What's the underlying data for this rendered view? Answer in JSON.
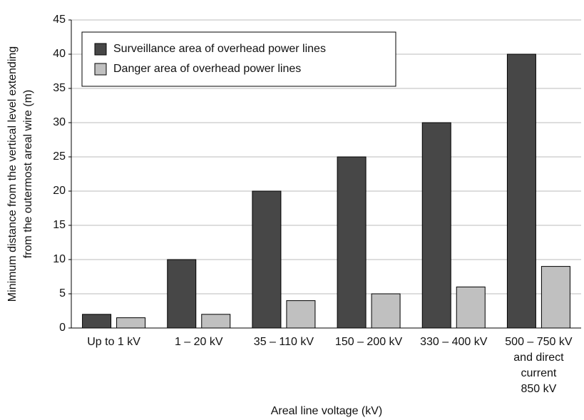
{
  "chart_data": {
    "type": "bar",
    "x_label": "Areal line voltage (kV)",
    "y_label": [
      "Minimum distance from the vertical level extending",
      "from the outermost areal wire (m)"
    ],
    "categories": [
      "Up to 1 kV",
      "1 – 20 kV",
      "35 – 110 kV",
      "150 – 200 kV",
      "330 – 400 kV",
      "500 – 750 kV\nand direct\ncurrent\n850 kV"
    ],
    "series": [
      {
        "name": "Surveillance area of overhead power lines",
        "color": "#474747",
        "values": [
          2,
          10,
          20,
          25,
          30,
          40
        ]
      },
      {
        "name": "Danger area of overhead power lines",
        "color": "#c0c0c0",
        "values": [
          1.5,
          2,
          4,
          5,
          6,
          9
        ]
      }
    ],
    "ylim": [
      0,
      45
    ],
    "yticks": [
      0,
      5,
      10,
      15,
      20,
      25,
      30,
      35,
      40,
      45
    ],
    "grid": true,
    "legend": "upper left"
  }
}
